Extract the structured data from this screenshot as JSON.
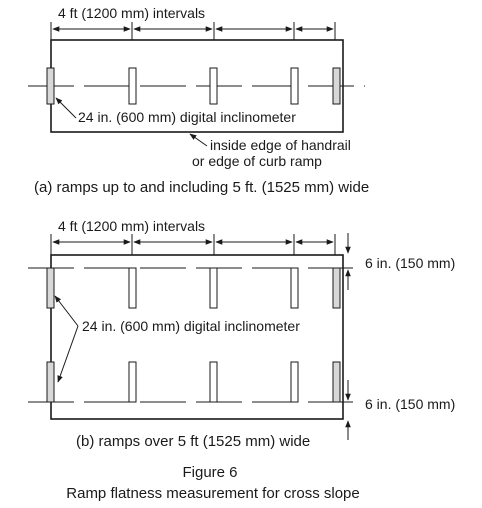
{
  "diagram_a": {
    "interval_label": "4 ft (1200 mm) intervals",
    "inclinometer_label": "24 in. (600 mm) digital inclinometer",
    "edge_label_line1": "inside edge of handrail",
    "edge_label_line2": "or edge of curb ramp",
    "caption": "(a) ramps up to and including 5 ft. (1525 mm) wide"
  },
  "diagram_b": {
    "interval_label": "4 ft (1200 mm) intervals",
    "inclinometer_label": "24 in. (600 mm) digital inclinometer",
    "offset_top_label": "6 in. (150 mm)",
    "offset_bottom_label": "6 in. (150 mm)",
    "caption": "(b) ramps over 5 ft (1525 mm) wide"
  },
  "figure": {
    "number": "Figure 6",
    "title": "Ramp flatness measurement for cross slope"
  }
}
